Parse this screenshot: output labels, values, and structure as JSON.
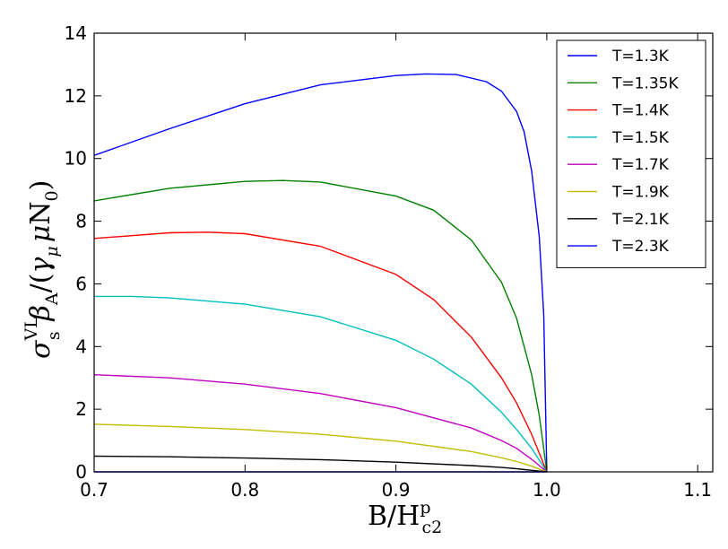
{
  "chart_data": {
    "type": "line",
    "xlabel": "B/H",
    "xlabel_sup": "p",
    "xlabel_sub": "c2",
    "ylabel": {
      "sigma": "σ",
      "sigma_sup": "VL",
      "sigma_sub": "s",
      "beta": "β",
      "beta_sub": "A",
      "rest_open": "/(",
      "gamma": "γ",
      "gamma_sub": "μ",
      "mu": "μ",
      "N": "N",
      "N_sub": "0",
      "rest_close": ")"
    },
    "xlim": [
      0.7,
      1.11
    ],
    "ylim": [
      0,
      14
    ],
    "xticks": [
      0.7,
      0.8,
      0.9,
      1.0,
      1.1
    ],
    "xtick_labels": [
      "0.7",
      "0.8",
      "0.9",
      "1.0",
      "1.1"
    ],
    "yticks": [
      0,
      2,
      4,
      6,
      8,
      10,
      12,
      14
    ],
    "ytick_labels": [
      "0",
      "2",
      "4",
      "6",
      "8",
      "10",
      "12",
      "14"
    ],
    "grid": false,
    "legend_position": "top-right",
    "series": [
      {
        "name": "T=1.3K",
        "color": "#0000ff",
        "x": [
          0.7,
          0.75,
          0.8,
          0.85,
          0.9,
          0.92,
          0.94,
          0.96,
          0.97,
          0.98,
          0.985,
          0.99,
          0.995,
          0.998,
          1.0
        ],
        "y": [
          10.1,
          10.95,
          11.75,
          12.35,
          12.65,
          12.7,
          12.68,
          12.45,
          12.15,
          11.5,
          10.85,
          9.6,
          7.5,
          5.0,
          0.0
        ]
      },
      {
        "name": "T=1.35K",
        "color": "#008000",
        "x": [
          0.7,
          0.75,
          0.8,
          0.825,
          0.85,
          0.9,
          0.925,
          0.95,
          0.97,
          0.98,
          0.99,
          0.995,
          1.0
        ],
        "y": [
          8.65,
          9.05,
          9.27,
          9.3,
          9.25,
          8.8,
          8.35,
          7.4,
          6.05,
          4.9,
          3.1,
          1.8,
          0.0
        ]
      },
      {
        "name": "T=1.4K",
        "color": "#ff0000",
        "x": [
          0.7,
          0.75,
          0.775,
          0.8,
          0.85,
          0.9,
          0.925,
          0.95,
          0.97,
          0.98,
          0.99,
          1.0
        ],
        "y": [
          7.45,
          7.63,
          7.65,
          7.6,
          7.2,
          6.3,
          5.5,
          4.3,
          3.0,
          2.2,
          1.2,
          0.0
        ]
      },
      {
        "name": "T=1.5K",
        "color": "#00bfbf",
        "x": [
          0.7,
          0.725,
          0.75,
          0.8,
          0.85,
          0.9,
          0.925,
          0.95,
          0.97,
          0.98,
          0.99,
          1.0
        ],
        "y": [
          5.6,
          5.6,
          5.55,
          5.35,
          4.95,
          4.2,
          3.6,
          2.8,
          1.9,
          1.35,
          0.75,
          0.0
        ]
      },
      {
        "name": "T=1.7K",
        "color": "#bf00bf",
        "x": [
          0.7,
          0.75,
          0.8,
          0.85,
          0.9,
          0.95,
          0.97,
          0.98,
          0.99,
          1.0
        ],
        "y": [
          3.1,
          3.0,
          2.8,
          2.5,
          2.05,
          1.4,
          1.0,
          0.75,
          0.4,
          0.0
        ]
      },
      {
        "name": "T=1.9K",
        "color": "#bfbf00",
        "x": [
          0.7,
          0.75,
          0.8,
          0.85,
          0.9,
          0.95,
          0.97,
          0.98,
          0.99,
          1.0
        ],
        "y": [
          1.52,
          1.45,
          1.35,
          1.2,
          0.98,
          0.65,
          0.45,
          0.33,
          0.18,
          0.0
        ]
      },
      {
        "name": "T=2.1K",
        "color": "#000000",
        "x": [
          0.7,
          0.75,
          0.8,
          0.85,
          0.9,
          0.95,
          0.97,
          0.98,
          0.99,
          1.0
        ],
        "y": [
          0.5,
          0.48,
          0.44,
          0.39,
          0.31,
          0.2,
          0.14,
          0.1,
          0.05,
          0.0
        ]
      },
      {
        "name": "T=2.3K",
        "color": "#0000ff",
        "x": [
          0.7,
          1.0
        ],
        "y": [
          0.0,
          0.0
        ]
      }
    ]
  }
}
